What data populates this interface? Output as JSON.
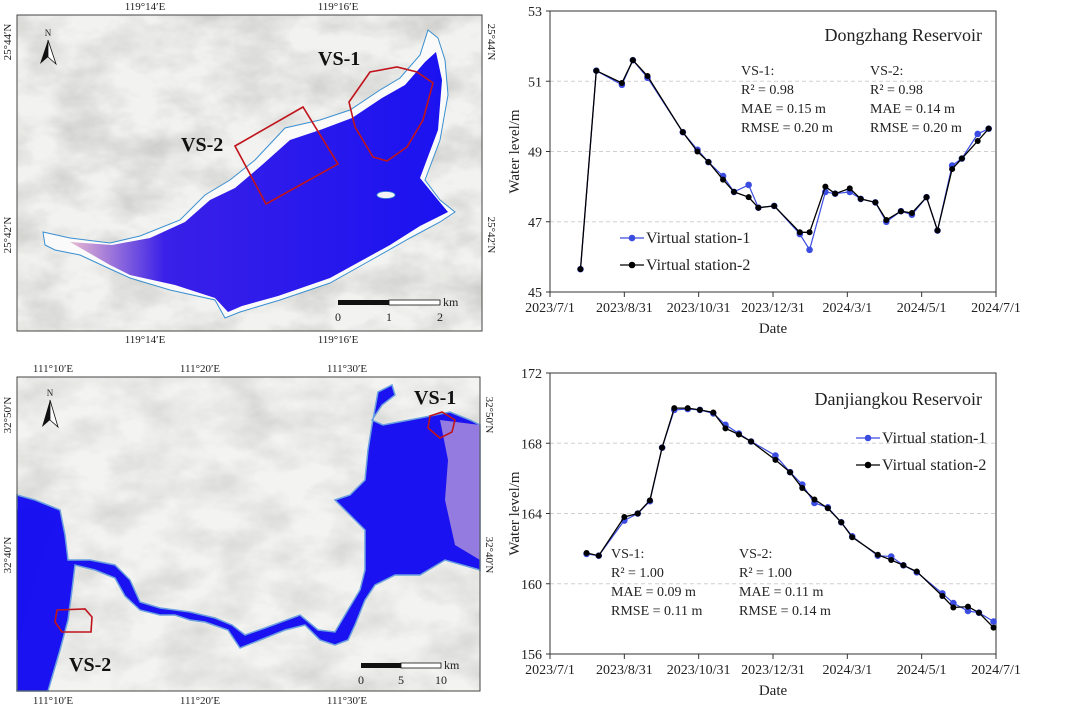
{
  "maps": [
    {
      "name": "Dongzhang Reservoir map",
      "top_ticks": [
        "119°14′E",
        "119°16′E"
      ],
      "bottom_ticks": [
        "119°14′E",
        "119°16′E"
      ],
      "left_ticks": [
        "25°44′N",
        "25°42′N"
      ],
      "right_ticks": [
        "25°44′N",
        "25°42′N"
      ],
      "north": "N",
      "vs1_label": "VS-1",
      "vs2_label": "VS-2",
      "scale_unit": "km",
      "scale_ticks": [
        "0",
        "1",
        "2"
      ]
    },
    {
      "name": "Danjiangkou Reservoir map",
      "top_ticks": [
        "111°10′E",
        "111°20′E",
        "111°30′E"
      ],
      "bottom_ticks": [
        "111°10′E",
        "111°20′E",
        "111°30′E"
      ],
      "left_ticks": [
        "32°50′N",
        "32°40′N"
      ],
      "right_ticks": [
        "32°50′N",
        "32°40′N"
      ],
      "north": "N",
      "vs1_label": "VS-1",
      "vs2_label": "VS-2",
      "scale_unit": "km",
      "scale_ticks": [
        "0",
        "5",
        "10"
      ]
    }
  ],
  "colors": {
    "vs1": "#3b4ce0",
    "vs2": "#000000",
    "water": "#1a12f0",
    "box": "#c0141c"
  },
  "chart_data": [
    {
      "type": "line",
      "title": "Dongzhang Reservoir",
      "xlabel": "Date",
      "ylabel": "Water level/m",
      "xlim": [
        "2023-07-01",
        "2024-07-01"
      ],
      "ylim": [
        45,
        53
      ],
      "xticks": [
        "2023/7/1",
        "2023/8/31",
        "2023/10/31",
        "2023/12/31",
        "2024/3/1",
        "2024/5/1",
        "2024/7/1"
      ],
      "xtick_dates": [
        "2023-07-01",
        "2023-08-31",
        "2023-10-31",
        "2023-12-31",
        "2024-03-01",
        "2024-05-01",
        "2024-07-01"
      ],
      "yticks": [
        "45",
        "47",
        "49",
        "51",
        "53"
      ],
      "legend": [
        "Virtual station-1",
        "Virtual station-2"
      ],
      "legend_position": "bottom-left",
      "stats": [
        {
          "head": "VS-1:",
          "r2": "R² = 0.98",
          "mae": "MAE = 0.15   m",
          "rmse": "RMSE = 0.20   m"
        },
        {
          "head": "VS-2:",
          "r2": "R² = 0.98",
          "mae": "MAE = 0.14   m",
          "rmse": "RMSE = 0.20   m"
        }
      ],
      "x": [
        "2023-07-26",
        "2023-08-08",
        "2023-08-29",
        "2023-09-07",
        "2023-09-19",
        "2023-10-18",
        "2023-10-30",
        "2023-11-08",
        "2023-11-20",
        "2023-11-29",
        "2023-12-11",
        "2023-12-19",
        "2024-01-01",
        "2024-01-22",
        "2024-01-30",
        "2024-02-12",
        "2024-02-20",
        "2024-03-03",
        "2024-03-12",
        "2024-03-24",
        "2024-04-02",
        "2024-04-14",
        "2024-04-23",
        "2024-05-05",
        "2024-05-14",
        "2024-05-26",
        "2024-06-03",
        "2024-06-16",
        "2024-06-25"
      ],
      "series": [
        {
          "name": "Virtual station-1",
          "values": [
            45.65,
            51.3,
            50.9,
            51.6,
            51.1,
            49.55,
            49.05,
            48.7,
            48.3,
            47.85,
            48.05,
            47.4,
            47.45,
            46.65,
            46.2,
            47.85,
            47.8,
            47.85,
            47.65,
            47.55,
            47.0,
            47.3,
            47.2,
            47.7,
            46.75,
            48.6,
            48.8,
            49.5,
            49.65
          ]
        },
        {
          "name": "Virtual station-2",
          "values": [
            45.65,
            51.3,
            50.95,
            51.6,
            51.15,
            49.55,
            49.0,
            48.7,
            48.2,
            47.85,
            47.7,
            47.4,
            47.45,
            46.7,
            46.7,
            48.0,
            47.8,
            47.95,
            47.65,
            47.55,
            47.05,
            47.3,
            47.25,
            47.7,
            46.75,
            48.5,
            48.8,
            49.3,
            49.65
          ]
        }
      ]
    },
    {
      "type": "line",
      "title": "Danjiangkou Reservoir",
      "xlabel": "Date",
      "ylabel": "Water level/m",
      "xlim": [
        "2023-07-01",
        "2024-07-01"
      ],
      "ylim": [
        156,
        172
      ],
      "xticks": [
        "2023/7/1",
        "2023/8/31",
        "2023/10/31",
        "2023/12/31",
        "2024/3/1",
        "2024/5/1",
        "2024/7/1"
      ],
      "xtick_dates": [
        "2023-07-01",
        "2023-08-31",
        "2023-10-31",
        "2023-12-31",
        "2024-03-01",
        "2024-05-01",
        "2024-07-01"
      ],
      "yticks": [
        "156",
        "160",
        "164",
        "168",
        "172"
      ],
      "legend": [
        "Virtual station-1",
        "Virtual station-2"
      ],
      "legend_position": "top-right",
      "stats": [
        {
          "head": "VS-1:",
          "r2": "R² = 1.00",
          "mae": "MAE = 0.09   m",
          "rmse": "RMSE = 0.11   m"
        },
        {
          "head": "VS-2:",
          "r2": "R² = 1.00",
          "mae": "MAE = 0.11   m",
          "rmse": "RMSE = 0.14   m"
        }
      ],
      "x": [
        "2023-07-31",
        "2023-08-10",
        "2023-08-31",
        "2023-09-11",
        "2023-09-21",
        "2023-10-01",
        "2023-10-11",
        "2023-10-22",
        "2023-11-01",
        "2023-11-12",
        "2023-11-22",
        "2023-12-03",
        "2023-12-13",
        "2024-01-02",
        "2024-01-14",
        "2024-01-24",
        "2024-02-03",
        "2024-02-14",
        "2024-02-25",
        "2024-03-05",
        "2024-03-26",
        "2024-04-06",
        "2024-04-16",
        "2024-04-27",
        "2024-05-18",
        "2024-05-27",
        "2024-06-08",
        "2024-06-17",
        "2024-06-29"
      ],
      "series": [
        {
          "name": "Virtual station-1",
          "values": [
            161.7,
            161.6,
            163.6,
            164.0,
            164.7,
            167.75,
            169.9,
            169.95,
            169.9,
            169.7,
            169.05,
            168.55,
            168.1,
            167.3,
            166.35,
            165.65,
            164.6,
            164.35,
            163.5,
            162.7,
            161.6,
            161.55,
            161.05,
            160.65,
            159.45,
            158.9,
            158.45,
            158.35,
            157.85
          ]
        },
        {
          "name": "Virtual station-2",
          "values": [
            161.75,
            161.6,
            163.8,
            164.0,
            164.75,
            167.75,
            170.0,
            170.0,
            169.9,
            169.75,
            168.85,
            168.5,
            168.1,
            167.05,
            166.35,
            165.45,
            164.8,
            164.3,
            163.5,
            162.65,
            161.65,
            161.35,
            161.05,
            160.7,
            159.3,
            158.65,
            158.7,
            158.35,
            157.5
          ]
        }
      ]
    }
  ]
}
